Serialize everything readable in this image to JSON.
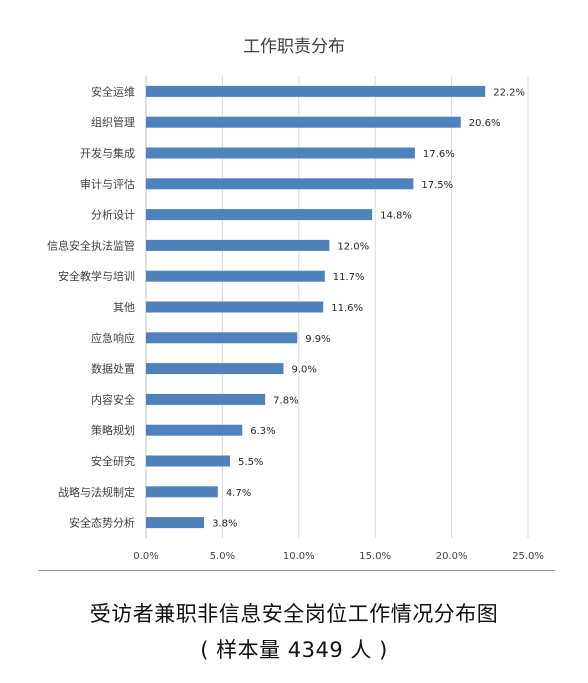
{
  "chart_data": {
    "type": "bar",
    "orientation": "horizontal",
    "title": "工作职责分布",
    "categories": [
      "安全运维",
      "组织管理",
      "开发与集成",
      "审计与评估",
      "分析设计",
      "信息安全执法监管",
      "安全教学与培训",
      "其他",
      "应急响应",
      "数据处置",
      "内容安全",
      "策略规划",
      "安全研究",
      "战略与法规制定",
      "安全态势分析"
    ],
    "values": [
      22.2,
      20.6,
      17.6,
      17.5,
      14.8,
      12.0,
      11.7,
      11.6,
      9.9,
      9.0,
      7.8,
      6.3,
      5.5,
      4.7,
      3.8
    ],
    "value_labels": [
      "22.2%",
      "20.6%",
      "17.6%",
      "17.5%",
      "14.8%",
      "12.0%",
      "11.7%",
      "11.6%",
      "9.9%",
      "9.0%",
      "7.8%",
      "6.3%",
      "5.5%",
      "4.7%",
      "3.8%"
    ],
    "xlim": [
      0,
      25
    ],
    "xticks": [
      "0.0%",
      "5.0%",
      "10.0%",
      "15.0%",
      "20.0%",
      "25.0%"
    ],
    "grid": true,
    "legend": "none",
    "bar_color": "#4f81bd",
    "grid_color": "#d9d9d9"
  },
  "caption": {
    "main": "受访者兼职非信息安全岗位工作情况分布图",
    "sub": "( 样本量 4349 人 )"
  }
}
